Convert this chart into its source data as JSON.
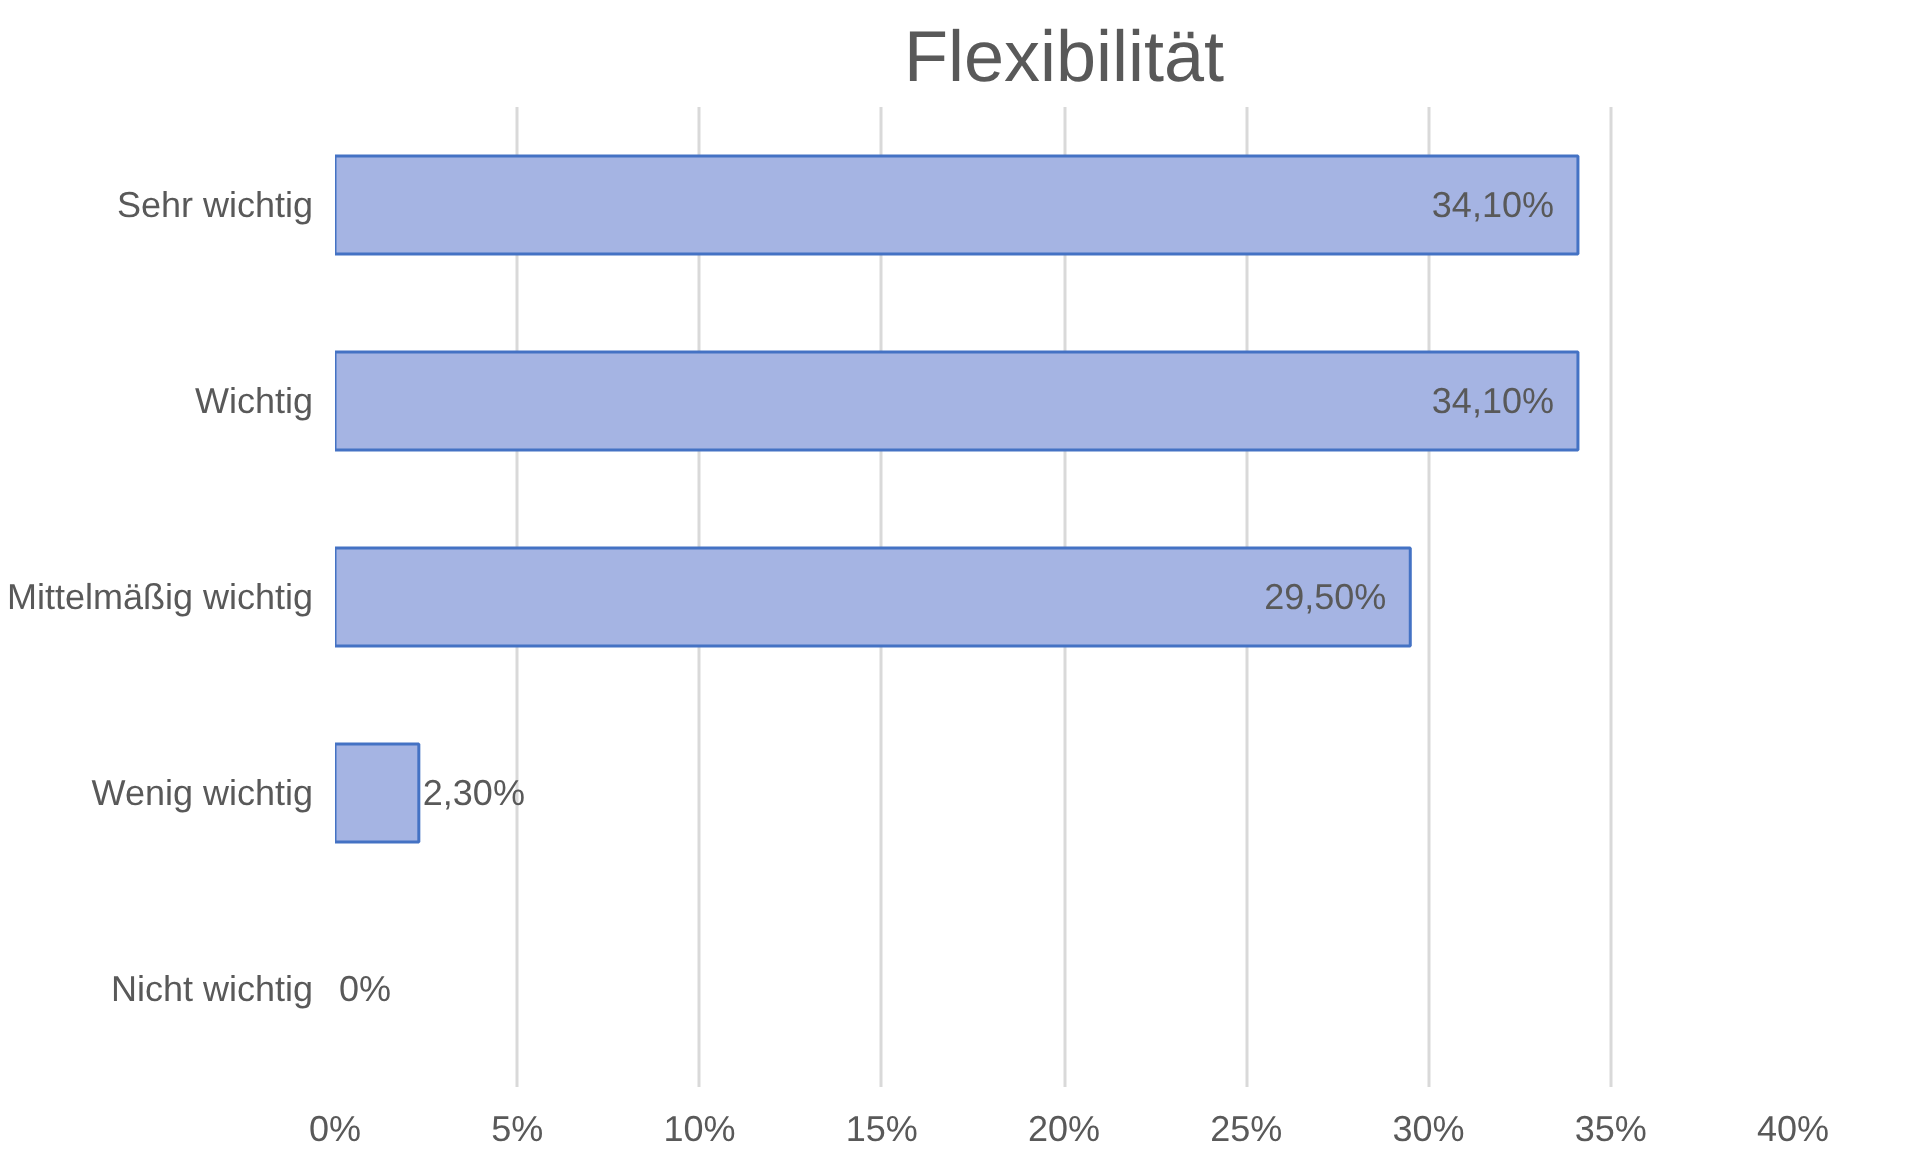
{
  "chart_data": {
    "type": "bar",
    "orientation": "horizontal",
    "title": "Flexibilität",
    "categories": [
      "Sehr wichtig",
      "Wichtig",
      "Mittelmäßig wichtig",
      "Wenig wichtig",
      "Nicht wichtig"
    ],
    "values": [
      34.1,
      34.1,
      29.5,
      2.3,
      0
    ],
    "value_labels": [
      "34,10%",
      "34,10%",
      "29,50%",
      "2,30%",
      "0%"
    ],
    "color": "#a5b4e3",
    "xlim": [
      0,
      40
    ],
    "xticks": [
      {
        "value": 0,
        "label": "0%"
      },
      {
        "value": 5,
        "label": "5%"
      },
      {
        "value": 10,
        "label": "10%"
      },
      {
        "value": 15,
        "label": "15%"
      },
      {
        "value": 20,
        "label": "20%"
      },
      {
        "value": 25,
        "label": "25%"
      },
      {
        "value": 30,
        "label": "30%"
      },
      {
        "value": 35,
        "label": "35%"
      },
      {
        "value": 40,
        "label": "40%"
      }
    ],
    "grid": "x"
  }
}
